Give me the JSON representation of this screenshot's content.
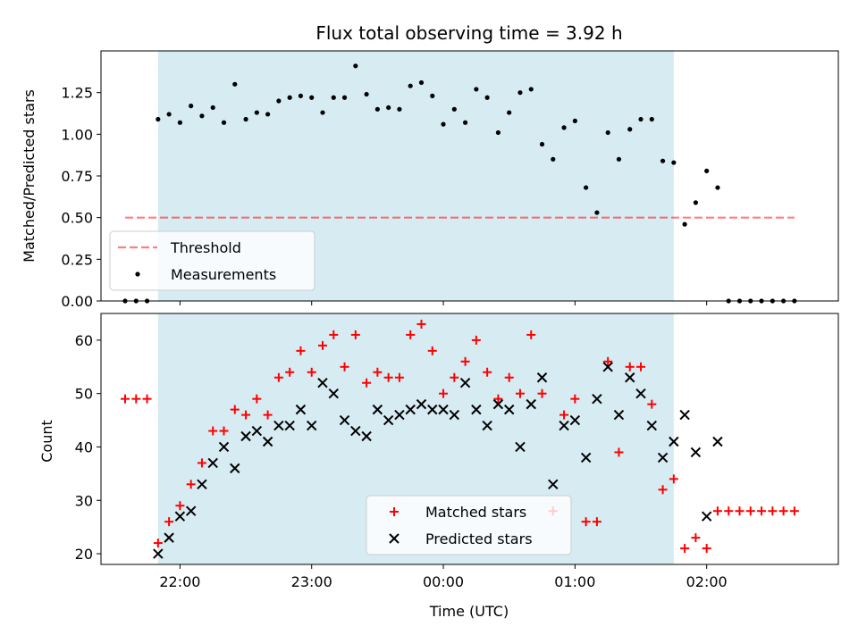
{
  "title": "Flux total observing time = 3.92 h",
  "colors": {
    "shade": "#add8e6",
    "threshold": "#ff0000",
    "matched": "#ff0000",
    "predicted": "#000000",
    "measure": "#000000"
  },
  "chart_data": [
    {
      "type": "scatter",
      "panel": "top",
      "title": "Flux total observing time = 3.92 h",
      "xlabel": "",
      "ylabel": "Matched/Predicted stars",
      "ylim": [
        0,
        1.5
      ],
      "yticks": [
        0.0,
        0.25,
        0.5,
        0.75,
        1.0,
        1.25
      ],
      "ytick_labels": [
        "0.00",
        "0.25",
        "0.50",
        "0.75",
        "1.00",
        "1.25"
      ],
      "xlim_hours": [
        21.4,
        27.0
      ],
      "observing_window": [
        "21:50",
        "25:45"
      ],
      "legend": {
        "placement": "lower-left",
        "entries": [
          "Threshold",
          "Measurements"
        ]
      },
      "threshold": {
        "name": "Threshold",
        "y": 0.5,
        "x": [
          "21:35",
          "26:40"
        ]
      },
      "series": [
        {
          "name": "Measurements",
          "x": [
            "21:35",
            "21:40",
            "21:45",
            "21:50",
            "21:55",
            "22:00",
            "22:05",
            "22:10",
            "22:15",
            "22:20",
            "22:25",
            "22:30",
            "22:35",
            "22:40",
            "22:45",
            "22:50",
            "22:55",
            "23:00",
            "23:05",
            "23:10",
            "23:15",
            "23:20",
            "23:25",
            "23:30",
            "23:35",
            "23:40",
            "23:45",
            "23:50",
            "23:55",
            "00:00",
            "00:05",
            "00:10",
            "00:15",
            "00:20",
            "00:25",
            "00:30",
            "00:35",
            "00:40",
            "00:45",
            "00:50",
            "00:55",
            "01:00",
            "01:05",
            "01:10",
            "01:15",
            "01:20",
            "01:25",
            "01:30",
            "01:35",
            "01:40",
            "01:45",
            "01:50",
            "01:55",
            "02:00",
            "02:05",
            "02:10",
            "02:15",
            "02:20",
            "02:25",
            "02:30",
            "02:35",
            "02:40"
          ],
          "y": [
            0,
            0,
            0,
            1.09,
            1.12,
            1.07,
            1.17,
            1.11,
            1.16,
            1.07,
            1.3,
            1.09,
            1.13,
            1.12,
            1.2,
            1.22,
            1.23,
            1.22,
            1.13,
            1.22,
            1.22,
            1.41,
            1.24,
            1.15,
            1.16,
            1.15,
            1.29,
            1.31,
            1.23,
            1.06,
            1.15,
            1.07,
            1.27,
            1.22,
            1.01,
            1.13,
            1.25,
            1.27,
            0.94,
            0.85,
            1.04,
            1.08,
            0.68,
            0.53,
            1.01,
            0.85,
            1.03,
            1.09,
            1.09,
            0.84,
            0.83,
            0.46,
            0.59,
            0.78,
            0.68,
            0,
            0,
            0,
            0,
            0,
            0,
            0
          ]
        }
      ]
    },
    {
      "type": "scatter",
      "panel": "bottom",
      "xlabel": "Time (UTC)",
      "ylabel": "Count",
      "ylim": [
        18,
        65
      ],
      "yticks": [
        20,
        30,
        40,
        50,
        60
      ],
      "ytick_labels": [
        "20",
        "30",
        "40",
        "50",
        "60"
      ],
      "xlim_hours": [
        21.4,
        27.0
      ],
      "xtick_labels": [
        "22:00",
        "23:00",
        "00:00",
        "01:00",
        "02:00"
      ],
      "observing_window": [
        "21:50",
        "25:45"
      ],
      "legend": {
        "placement": "lower-center",
        "entries": [
          "Matched stars",
          "Predicted stars"
        ]
      },
      "series": [
        {
          "name": "Matched stars",
          "x": [
            "21:35",
            "21:40",
            "21:45",
            "21:50",
            "21:55",
            "22:00",
            "22:05",
            "22:10",
            "22:15",
            "22:20",
            "22:25",
            "22:30",
            "22:35",
            "22:40",
            "22:45",
            "22:50",
            "22:55",
            "23:00",
            "23:05",
            "23:10",
            "23:15",
            "23:20",
            "23:25",
            "23:30",
            "23:35",
            "23:40",
            "23:45",
            "23:50",
            "23:55",
            "00:00",
            "00:05",
            "00:10",
            "00:15",
            "00:20",
            "00:25",
            "00:30",
            "00:35",
            "00:40",
            "00:45",
            "00:50",
            "00:55",
            "01:00",
            "01:05",
            "01:10",
            "01:15",
            "01:20",
            "01:25",
            "01:30",
            "01:35",
            "01:40",
            "01:45",
            "01:50",
            "01:55",
            "02:00",
            "02:05",
            "02:10",
            "02:15",
            "02:20",
            "02:25",
            "02:30",
            "02:35",
            "02:40"
          ],
          "y": [
            49,
            49,
            49,
            22,
            26,
            29,
            33,
            37,
            43,
            43,
            47,
            46,
            49,
            46,
            53,
            54,
            58,
            54,
            59,
            61,
            55,
            61,
            52,
            54,
            53,
            53,
            61,
            63,
            58,
            50,
            53,
            56,
            60,
            54,
            49,
            53,
            50,
            61,
            50,
            28,
            46,
            49,
            26,
            26,
            56,
            39,
            55,
            55,
            48,
            32,
            34,
            21,
            23,
            21,
            28,
            28,
            28,
            28,
            28,
            28,
            28,
            28
          ]
        },
        {
          "name": "Predicted stars",
          "x": [
            "21:50",
            "21:55",
            "22:00",
            "22:05",
            "22:10",
            "22:15",
            "22:20",
            "22:25",
            "22:30",
            "22:35",
            "22:40",
            "22:45",
            "22:50",
            "22:55",
            "23:00",
            "23:05",
            "23:10",
            "23:15",
            "23:20",
            "23:25",
            "23:30",
            "23:35",
            "23:40",
            "23:45",
            "23:50",
            "23:55",
            "00:00",
            "00:05",
            "00:10",
            "00:15",
            "00:20",
            "00:25",
            "00:30",
            "00:35",
            "00:40",
            "00:45",
            "00:50",
            "00:55",
            "01:00",
            "01:05",
            "01:10",
            "01:15",
            "01:20",
            "01:25",
            "01:30",
            "01:35",
            "01:40",
            "01:45",
            "01:50",
            "01:55",
            "02:00",
            "02:05"
          ],
          "y": [
            20,
            23,
            27,
            28,
            33,
            37,
            40,
            36,
            42,
            43,
            41,
            44,
            44,
            47,
            44,
            52,
            50,
            45,
            43,
            42,
            47,
            45,
            46,
            47,
            48,
            47,
            47,
            46,
            52,
            47,
            44,
            48,
            47,
            40,
            48,
            53,
            33,
            44,
            45,
            38,
            49,
            55,
            46,
            53,
            50,
            44,
            38,
            41,
            46,
            39,
            27,
            41
          ]
        }
      ]
    }
  ]
}
